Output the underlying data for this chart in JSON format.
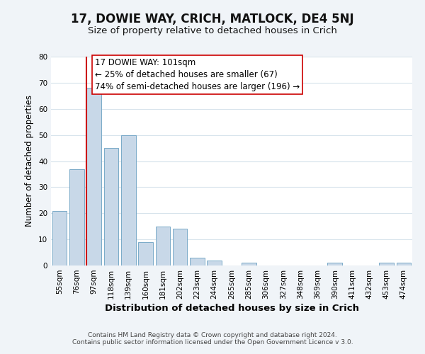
{
  "title": "17, DOWIE WAY, CRICH, MATLOCK, DE4 5NJ",
  "subtitle": "Size of property relative to detached houses in Crich",
  "xlabel": "Distribution of detached houses by size in Crich",
  "ylabel": "Number of detached properties",
  "footer_line1": "Contains HM Land Registry data © Crown copyright and database right 2024.",
  "footer_line2": "Contains public sector information licensed under the Open Government Licence v 3.0.",
  "bin_labels": [
    "55sqm",
    "76sqm",
    "97sqm",
    "118sqm",
    "139sqm",
    "160sqm",
    "181sqm",
    "202sqm",
    "223sqm",
    "244sqm",
    "265sqm",
    "285sqm",
    "306sqm",
    "327sqm",
    "348sqm",
    "369sqm",
    "390sqm",
    "411sqm",
    "432sqm",
    "453sqm",
    "474sqm"
  ],
  "bar_heights": [
    21,
    37,
    68,
    45,
    50,
    9,
    15,
    14,
    3,
    2,
    0,
    1,
    0,
    0,
    0,
    0,
    1,
    0,
    0,
    1,
    1
  ],
  "bar_color": "#c8d8e8",
  "bar_edgecolor": "#7aaac8",
  "vline_x_index": 2,
  "vline_color": "#cc0000",
  "annotation_line1": "17 DOWIE WAY: 101sqm",
  "annotation_line2": "← 25% of detached houses are smaller (67)",
  "annotation_line3": "74% of semi-detached houses are larger (196) →",
  "annotation_box_edgecolor": "#cc0000",
  "annotation_box_facecolor": "#ffffff",
  "ylim": [
    0,
    80
  ],
  "yticks": [
    0,
    10,
    20,
    30,
    40,
    50,
    60,
    70,
    80
  ],
  "background_color": "#f0f4f8",
  "plot_background_color": "#ffffff",
  "grid_color": "#d8e4ec",
  "title_fontsize": 12,
  "subtitle_fontsize": 9.5,
  "xlabel_fontsize": 9.5,
  "ylabel_fontsize": 8.5,
  "tick_fontsize": 7.5,
  "footer_fontsize": 6.5,
  "annotation_fontsize": 8.5
}
